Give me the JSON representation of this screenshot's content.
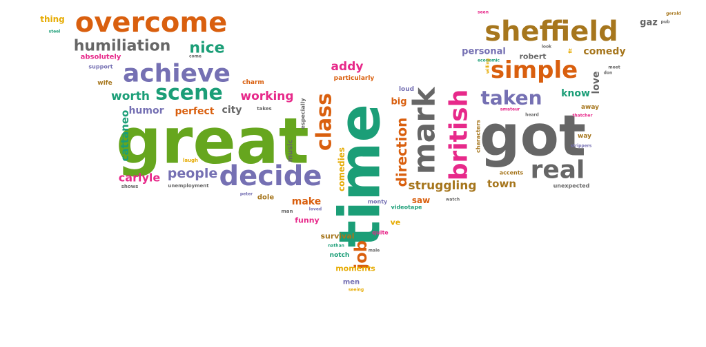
{
  "palette": {
    "orange": "#d95f0e",
    "purple": "#7570b3",
    "teal": "#1b9e77",
    "pink": "#e7298a",
    "green": "#66a61e",
    "yellow": "#e6ab02",
    "brown": "#a6761d",
    "gray": "#666666"
  },
  "words": [
    {
      "text": "great",
      "weight": 95,
      "color": "green"
    },
    {
      "text": "time",
      "weight": 90,
      "color": "teal"
    },
    {
      "text": "got",
      "weight": 85,
      "color": "gray"
    },
    {
      "text": "overcome",
      "weight": 55,
      "color": "orange"
    },
    {
      "text": "sheffield",
      "weight": 55,
      "color": "brown"
    },
    {
      "text": "achieve",
      "weight": 48,
      "color": "purple"
    },
    {
      "text": "simple",
      "weight": 45,
      "color": "orange"
    },
    {
      "text": "decide",
      "weight": 48,
      "color": "purple"
    },
    {
      "text": "mark",
      "weight": 52,
      "color": "gray"
    },
    {
      "text": "british",
      "weight": 50,
      "color": "pink"
    },
    {
      "text": "real",
      "weight": 45,
      "color": "gray"
    },
    {
      "text": "class",
      "weight": 40,
      "color": "orange"
    },
    {
      "text": "scene",
      "weight": 40,
      "color": "teal"
    },
    {
      "text": "taken",
      "weight": 38,
      "color": "purple"
    },
    {
      "text": "job",
      "weight": 30,
      "color": "orange"
    },
    {
      "text": "humiliation",
      "weight": 30,
      "color": "gray"
    },
    {
      "text": "nice",
      "weight": 26,
      "color": "teal"
    },
    {
      "text": "direction",
      "weight": 26,
      "color": "orange"
    },
    {
      "text": "people",
      "weight": 26,
      "color": "purple"
    },
    {
      "text": "struggling",
      "weight": 24,
      "color": "brown"
    },
    {
      "text": "worth",
      "weight": 22,
      "color": "teal"
    },
    {
      "text": "working",
      "weight": 22,
      "color": "pink"
    },
    {
      "text": "carlyle",
      "weight": 22,
      "color": "pink"
    },
    {
      "text": "cattaneo",
      "weight": 20,
      "color": "teal"
    },
    {
      "text": "addy",
      "weight": 22,
      "color": "pink"
    },
    {
      "text": "comedy",
      "weight": 20,
      "color": "brown"
    },
    {
      "text": "personal",
      "weight": 18,
      "color": "purple"
    },
    {
      "text": "know",
      "weight": 18,
      "color": "teal"
    },
    {
      "text": "love",
      "weight": 18,
      "color": "gray"
    },
    {
      "text": "town",
      "weight": 20,
      "color": "brown"
    },
    {
      "text": "gaz",
      "weight": 18,
      "color": "gray"
    },
    {
      "text": "make",
      "weight": 18,
      "color": "orange"
    },
    {
      "text": "perfect",
      "weight": 18,
      "color": "orange"
    },
    {
      "text": "city",
      "weight": 18,
      "color": "gray"
    },
    {
      "text": "humor",
      "weight": 18,
      "color": "purple"
    },
    {
      "text": "big",
      "weight": 17,
      "color": "orange"
    },
    {
      "text": "comedies",
      "weight": 16,
      "color": "yellow"
    },
    {
      "text": "thing",
      "weight": 16,
      "color": "yellow"
    },
    {
      "text": "saw",
      "weight": 16,
      "color": "orange"
    },
    {
      "text": "funny",
      "weight": 15,
      "color": "pink"
    },
    {
      "text": "robert",
      "weight": 15,
      "color": "gray"
    },
    {
      "text": "moments",
      "weight": 14,
      "color": "yellow"
    },
    {
      "text": "survival",
      "weight": 14,
      "color": "brown"
    },
    {
      "text": "music",
      "weight": 13,
      "color": "gray"
    },
    {
      "text": "dole",
      "weight": 13,
      "color": "brown"
    },
    {
      "text": "absolutely",
      "weight": 13,
      "color": "pink"
    },
    {
      "text": "particularly",
      "weight": 12,
      "color": "orange"
    },
    {
      "text": "notch",
      "weight": 12,
      "color": "teal"
    },
    {
      "text": "men",
      "weight": 12,
      "color": "purple"
    },
    {
      "text": "charm",
      "weight": 11,
      "color": "orange"
    },
    {
      "text": "wife",
      "weight": 11,
      "color": "brown"
    },
    {
      "text": "loud",
      "weight": 11,
      "color": "purple"
    },
    {
      "text": "away",
      "weight": 11,
      "color": "brown"
    },
    {
      "text": "ve",
      "weight": 13,
      "color": "yellow"
    },
    {
      "text": "way",
      "weight": 11,
      "color": "brown"
    },
    {
      "text": "videotape",
      "weight": 11,
      "color": "teal"
    },
    {
      "text": "monty",
      "weight": 11,
      "color": "purple"
    },
    {
      "text": "quite",
      "weight": 11,
      "color": "pink"
    },
    {
      "text": "especially",
      "weight": 11,
      "color": "gray"
    },
    {
      "text": "characters",
      "weight": 10,
      "color": "brown"
    },
    {
      "text": "accents",
      "weight": 10,
      "color": "brown"
    },
    {
      "text": "unexpected",
      "weight": 10,
      "color": "gray"
    },
    {
      "text": "unemployment",
      "weight": 10,
      "color": "gray"
    },
    {
      "text": "support",
      "weight": 10,
      "color": "purple"
    },
    {
      "text": "takes",
      "weight": 10,
      "color": "gray"
    },
    {
      "text": "man",
      "weight": 10,
      "color": "gray"
    },
    {
      "text": "laugh",
      "weight": 9,
      "color": "yellow"
    },
    {
      "text": "shows",
      "weight": 9,
      "color": "gray"
    },
    {
      "text": "loved",
      "weight": 8,
      "color": "purple"
    },
    {
      "text": "meet",
      "weight": 8,
      "color": "gray"
    },
    {
      "text": "steel",
      "weight": 8,
      "color": "teal"
    },
    {
      "text": "peter",
      "weight": 8,
      "color": "purple"
    },
    {
      "text": "watch",
      "weight": 8,
      "color": "gray"
    },
    {
      "text": "nathan",
      "weight": 8,
      "color": "teal"
    },
    {
      "text": "male",
      "weight": 8,
      "color": "gray"
    },
    {
      "text": "seeing",
      "weight": 8,
      "color": "yellow"
    },
    {
      "text": "heard",
      "weight": 8,
      "color": "gray"
    },
    {
      "text": "amateur",
      "weight": 8,
      "color": "pink"
    },
    {
      "text": "thatcher",
      "weight": 8,
      "color": "pink"
    },
    {
      "text": "strippers",
      "weight": 8,
      "color": "purple"
    },
    {
      "text": "economic",
      "weight": 8,
      "color": "teal"
    },
    {
      "text": "willing",
      "weight": 8,
      "color": "yellow"
    },
    {
      "text": "look",
      "weight": 8,
      "color": "gray"
    },
    {
      "text": "seen",
      "weight": 8,
      "color": "pink"
    },
    {
      "text": "gerald",
      "weight": 8,
      "color": "brown"
    },
    {
      "text": "pub",
      "weight": 8,
      "color": "gray"
    },
    {
      "text": "come",
      "weight": 8,
      "color": "gray"
    },
    {
      "text": "don",
      "weight": 8,
      "color": "gray"
    },
    {
      "text": "fit",
      "weight": 8,
      "color": "yellow"
    }
  ]
}
